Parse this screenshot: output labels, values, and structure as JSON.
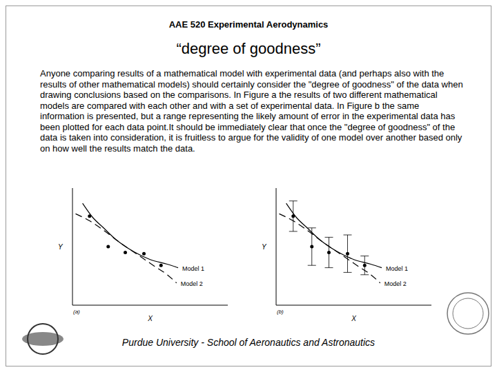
{
  "header": "AAE 520 Experimental Aerodynamics",
  "title": "“degree of goodness”",
  "body": "Anyone comparing results of a mathematical model with experimental data (and perhaps also with the results of other mathematical models) should certainly consider the \"degree of goodness\" of the data when drawing conclusions based on the comparisons. In Figure a the results of two different mathematical models are compared with each other and with a set of experimental data. In Figure b the same information is presented, but a range representing the likely amount of error in the experimental data has been plotted for each data point.It should be immediately clear that once the \"degree of goodness\" of the data is taken into consideration, it is fruitless to argue for the validity of one model over another based only on how well the results match the data.",
  "footer": "Purdue University - School of Aeronautics and Astronautics",
  "chart_data": [
    {
      "type": "line",
      "caption": "(a)",
      "x_label": "X",
      "y_label": "Y",
      "xlim": [
        0,
        10
      ],
      "ylim": [
        0,
        10
      ],
      "tick_labels": false,
      "series": [
        {
          "name": "Model 1",
          "color": "#000000",
          "line_style": "solid",
          "x": [
            0.65,
            1.3,
            2.0,
            2.8,
            3.9,
            5.0,
            6.1,
            6.8
          ],
          "values": [
            8.7,
            7.5,
            6.6,
            5.6,
            4.6,
            3.9,
            3.5,
            3.2
          ]
        },
        {
          "name": "Model 2",
          "color": "#000000",
          "line_style": "dashed",
          "x": [
            0.2,
            1.1,
            2.0,
            3.0,
            4.1,
            5.2,
            6.1,
            6.7
          ],
          "values": [
            7.8,
            7.2,
            6.4,
            5.4,
            4.4,
            3.4,
            2.6,
            1.9
          ]
        }
      ],
      "points": {
        "color": "#000000",
        "marker": "circle",
        "x": [
          1.1,
          2.3,
          3.4,
          4.6,
          5.7
        ],
        "values": [
          7.6,
          5.0,
          4.5,
          4.4,
          3.4
        ]
      }
    },
    {
      "type": "line",
      "caption": "(b)",
      "x_label": "X",
      "y_label": "Y",
      "xlim": [
        0,
        10
      ],
      "ylim": [
        0,
        10
      ],
      "tick_labels": false,
      "series": [
        {
          "name": "Model 1",
          "color": "#000000",
          "line_style": "solid",
          "x": [
            0.65,
            1.3,
            2.0,
            2.8,
            3.9,
            5.0,
            6.1,
            6.8
          ],
          "values": [
            8.7,
            7.5,
            6.6,
            5.6,
            4.6,
            3.9,
            3.5,
            3.2
          ]
        },
        {
          "name": "Model 2",
          "color": "#000000",
          "line_style": "dashed",
          "x": [
            0.2,
            1.1,
            2.0,
            3.0,
            4.1,
            5.2,
            6.1,
            6.7
          ],
          "values": [
            7.8,
            7.2,
            6.4,
            5.4,
            4.4,
            3.4,
            2.6,
            1.9
          ]
        }
      ],
      "points": {
        "color": "#000000",
        "marker": "circle",
        "x": [
          1.1,
          2.3,
          3.4,
          4.6,
          5.7
        ],
        "values": [
          7.6,
          5.0,
          4.5,
          4.4,
          3.4
        ],
        "errors": [
          1.3,
          1.6,
          1.3,
          1.6,
          0.8
        ]
      }
    }
  ]
}
